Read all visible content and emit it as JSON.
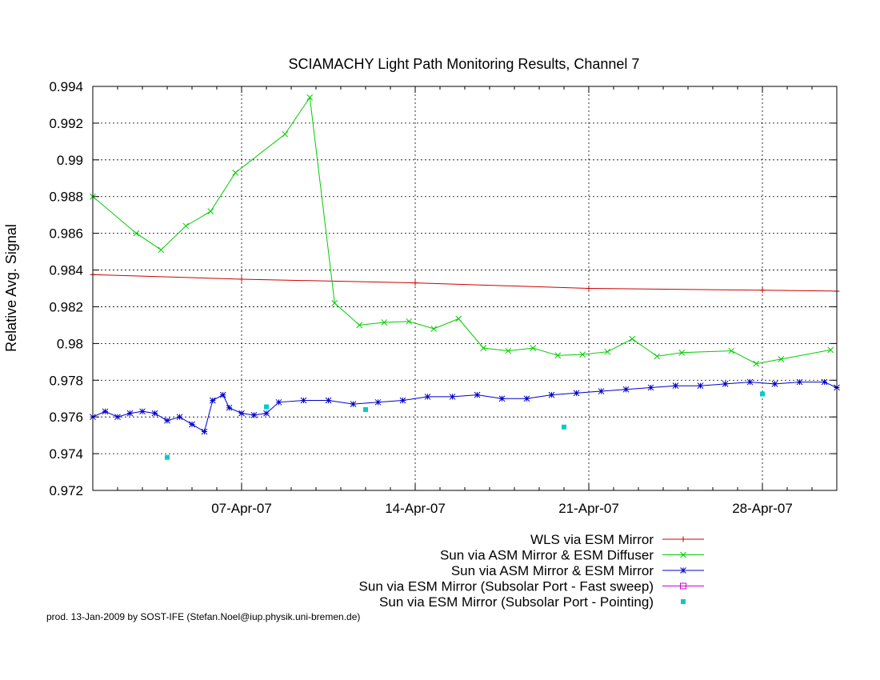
{
  "chart_data": {
    "type": "line",
    "title": "SCIAMACHY Light Path Monitoring Results, Channel 7",
    "xlabel": "",
    "ylabel": "Relative Avg. Signal",
    "x_unit": "date (2007, April)",
    "xlim": [
      "2007-04-01",
      "2007-05-01"
    ],
    "ylim": [
      0.972,
      0.994
    ],
    "y_ticks": [
      "0.972",
      "0.974",
      "0.976",
      "0.978",
      "0.98",
      "0.982",
      "0.984",
      "0.986",
      "0.988",
      "0.99",
      "0.992",
      "0.994"
    ],
    "x_ticks": [
      {
        "label": "07-Apr-07",
        "date": "2007-04-07"
      },
      {
        "label": "14-Apr-07",
        "date": "2007-04-14"
      },
      {
        "label": "21-Apr-07",
        "date": "2007-04-21"
      },
      {
        "label": "28-Apr-07",
        "date": "2007-04-28"
      }
    ],
    "grid": true,
    "legend_position": "below",
    "series": [
      {
        "name": "WLS via ESM Mirror",
        "color": "#cc0000",
        "marker": "plus",
        "style": "linespoints",
        "points": [
          [
            "2007-04-01 00:00",
            0.98375
          ],
          [
            "2007-04-07 00:00",
            0.9835
          ],
          [
            "2007-04-14 00:00",
            0.9833
          ],
          [
            "2007-04-21 00:00",
            0.983
          ],
          [
            "2007-04-28 00:00",
            0.9829
          ],
          [
            "2007-05-01 00:00",
            0.98285
          ]
        ]
      },
      {
        "name": "Sun via ASM Mirror & ESM Diffuser",
        "color": "#00cc00",
        "marker": "cross",
        "style": "linespoints",
        "points": [
          [
            "2007-04-01 00:00",
            0.988
          ],
          [
            "2007-04-02 18:00",
            0.986
          ],
          [
            "2007-04-03 18:00",
            0.9851
          ],
          [
            "2007-04-04 18:00",
            0.9864
          ],
          [
            "2007-04-05 18:00",
            0.9872
          ],
          [
            "2007-04-06 18:00",
            0.9893
          ],
          [
            "2007-04-08 18:00",
            0.9914
          ],
          [
            "2007-04-09 18:00",
            0.9934
          ],
          [
            "2007-04-10 18:00",
            0.9822
          ],
          [
            "2007-04-11 18:00",
            0.981
          ],
          [
            "2007-04-12 18:00",
            0.98115
          ],
          [
            "2007-04-13 18:00",
            0.9812
          ],
          [
            "2007-04-14 18:00",
            0.9808
          ],
          [
            "2007-04-15 18:00",
            0.98135
          ],
          [
            "2007-04-16 18:00",
            0.97975
          ],
          [
            "2007-04-17 18:00",
            0.9796
          ],
          [
            "2007-04-18 18:00",
            0.97975
          ],
          [
            "2007-04-19 18:00",
            0.97935
          ],
          [
            "2007-04-20 18:00",
            0.9794
          ],
          [
            "2007-04-21 18:00",
            0.97955
          ],
          [
            "2007-04-22 18:00",
            0.98025
          ],
          [
            "2007-04-23 18:00",
            0.9793
          ],
          [
            "2007-04-24 18:00",
            0.9795
          ],
          [
            "2007-04-26 18:00",
            0.9796
          ],
          [
            "2007-04-27 18:00",
            0.9789
          ],
          [
            "2007-04-28 18:00",
            0.97915
          ],
          [
            "2007-04-30 18:00",
            0.97965
          ]
        ]
      },
      {
        "name": "Sun via ASM Mirror & ESM Mirror",
        "color": "#0000cc",
        "marker": "star",
        "style": "linespoints",
        "points": [
          [
            "2007-04-01 00:00",
            0.976
          ],
          [
            "2007-04-01 12:00",
            0.9763
          ],
          [
            "2007-04-02 00:00",
            0.976
          ],
          [
            "2007-04-02 12:00",
            0.9762
          ],
          [
            "2007-04-03 00:00",
            0.9763
          ],
          [
            "2007-04-03 12:00",
            0.9762
          ],
          [
            "2007-04-04 00:00",
            0.9758
          ],
          [
            "2007-04-04 12:00",
            0.976
          ],
          [
            "2007-04-05 00:00",
            0.9756
          ],
          [
            "2007-04-05 12:00",
            0.9752
          ],
          [
            "2007-04-05 20:00",
            0.9769
          ],
          [
            "2007-04-06 06:00",
            0.9772
          ],
          [
            "2007-04-06 12:00",
            0.9765
          ],
          [
            "2007-04-07 00:00",
            0.9762
          ],
          [
            "2007-04-07 12:00",
            0.9761
          ],
          [
            "2007-04-08 00:00",
            0.9762
          ],
          [
            "2007-04-08 12:00",
            0.9768
          ],
          [
            "2007-04-09 12:00",
            0.9769
          ],
          [
            "2007-04-10 12:00",
            0.9769
          ],
          [
            "2007-04-11 12:00",
            0.9767
          ],
          [
            "2007-04-12 12:00",
            0.9768
          ],
          [
            "2007-04-13 12:00",
            0.9769
          ],
          [
            "2007-04-14 12:00",
            0.9771
          ],
          [
            "2007-04-15 12:00",
            0.9771
          ],
          [
            "2007-04-16 12:00",
            0.9772
          ],
          [
            "2007-04-17 12:00",
            0.977
          ],
          [
            "2007-04-18 12:00",
            0.977
          ],
          [
            "2007-04-19 12:00",
            0.9772
          ],
          [
            "2007-04-20 12:00",
            0.9773
          ],
          [
            "2007-04-21 12:00",
            0.9774
          ],
          [
            "2007-04-22 12:00",
            0.9775
          ],
          [
            "2007-04-23 12:00",
            0.9776
          ],
          [
            "2007-04-24 12:00",
            0.9777
          ],
          [
            "2007-04-25 12:00",
            0.9777
          ],
          [
            "2007-04-26 12:00",
            0.9778
          ],
          [
            "2007-04-27 12:00",
            0.9779
          ],
          [
            "2007-04-28 12:00",
            0.9778
          ],
          [
            "2007-04-29 12:00",
            0.9779
          ],
          [
            "2007-04-30 12:00",
            0.9779
          ],
          [
            "2007-05-01 00:00",
            0.9776
          ]
        ]
      },
      {
        "name": "Sun via ESM Mirror (Subsolar Port - Fast sweep)",
        "color": "#cc00cc",
        "marker": "box",
        "style": "linespoints",
        "points": []
      },
      {
        "name": "Sun via ESM Mirror (Subsolar Port - Pointing)",
        "color": "#00cccc",
        "marker": "square",
        "style": "points",
        "points": [
          [
            "2007-04-04 00:00",
            0.9738
          ],
          [
            "2007-04-08 00:00",
            0.97655
          ],
          [
            "2007-04-12 00:00",
            0.9764
          ],
          [
            "2007-04-20 00:00",
            0.97545
          ],
          [
            "2007-04-28 00:00",
            0.97725
          ]
        ]
      }
    ]
  },
  "footer": {
    "credit": "prod. 13-Jan-2009 by SOST-IFE (Stefan.Noel@iup.physik.uni-bremen.de)"
  }
}
